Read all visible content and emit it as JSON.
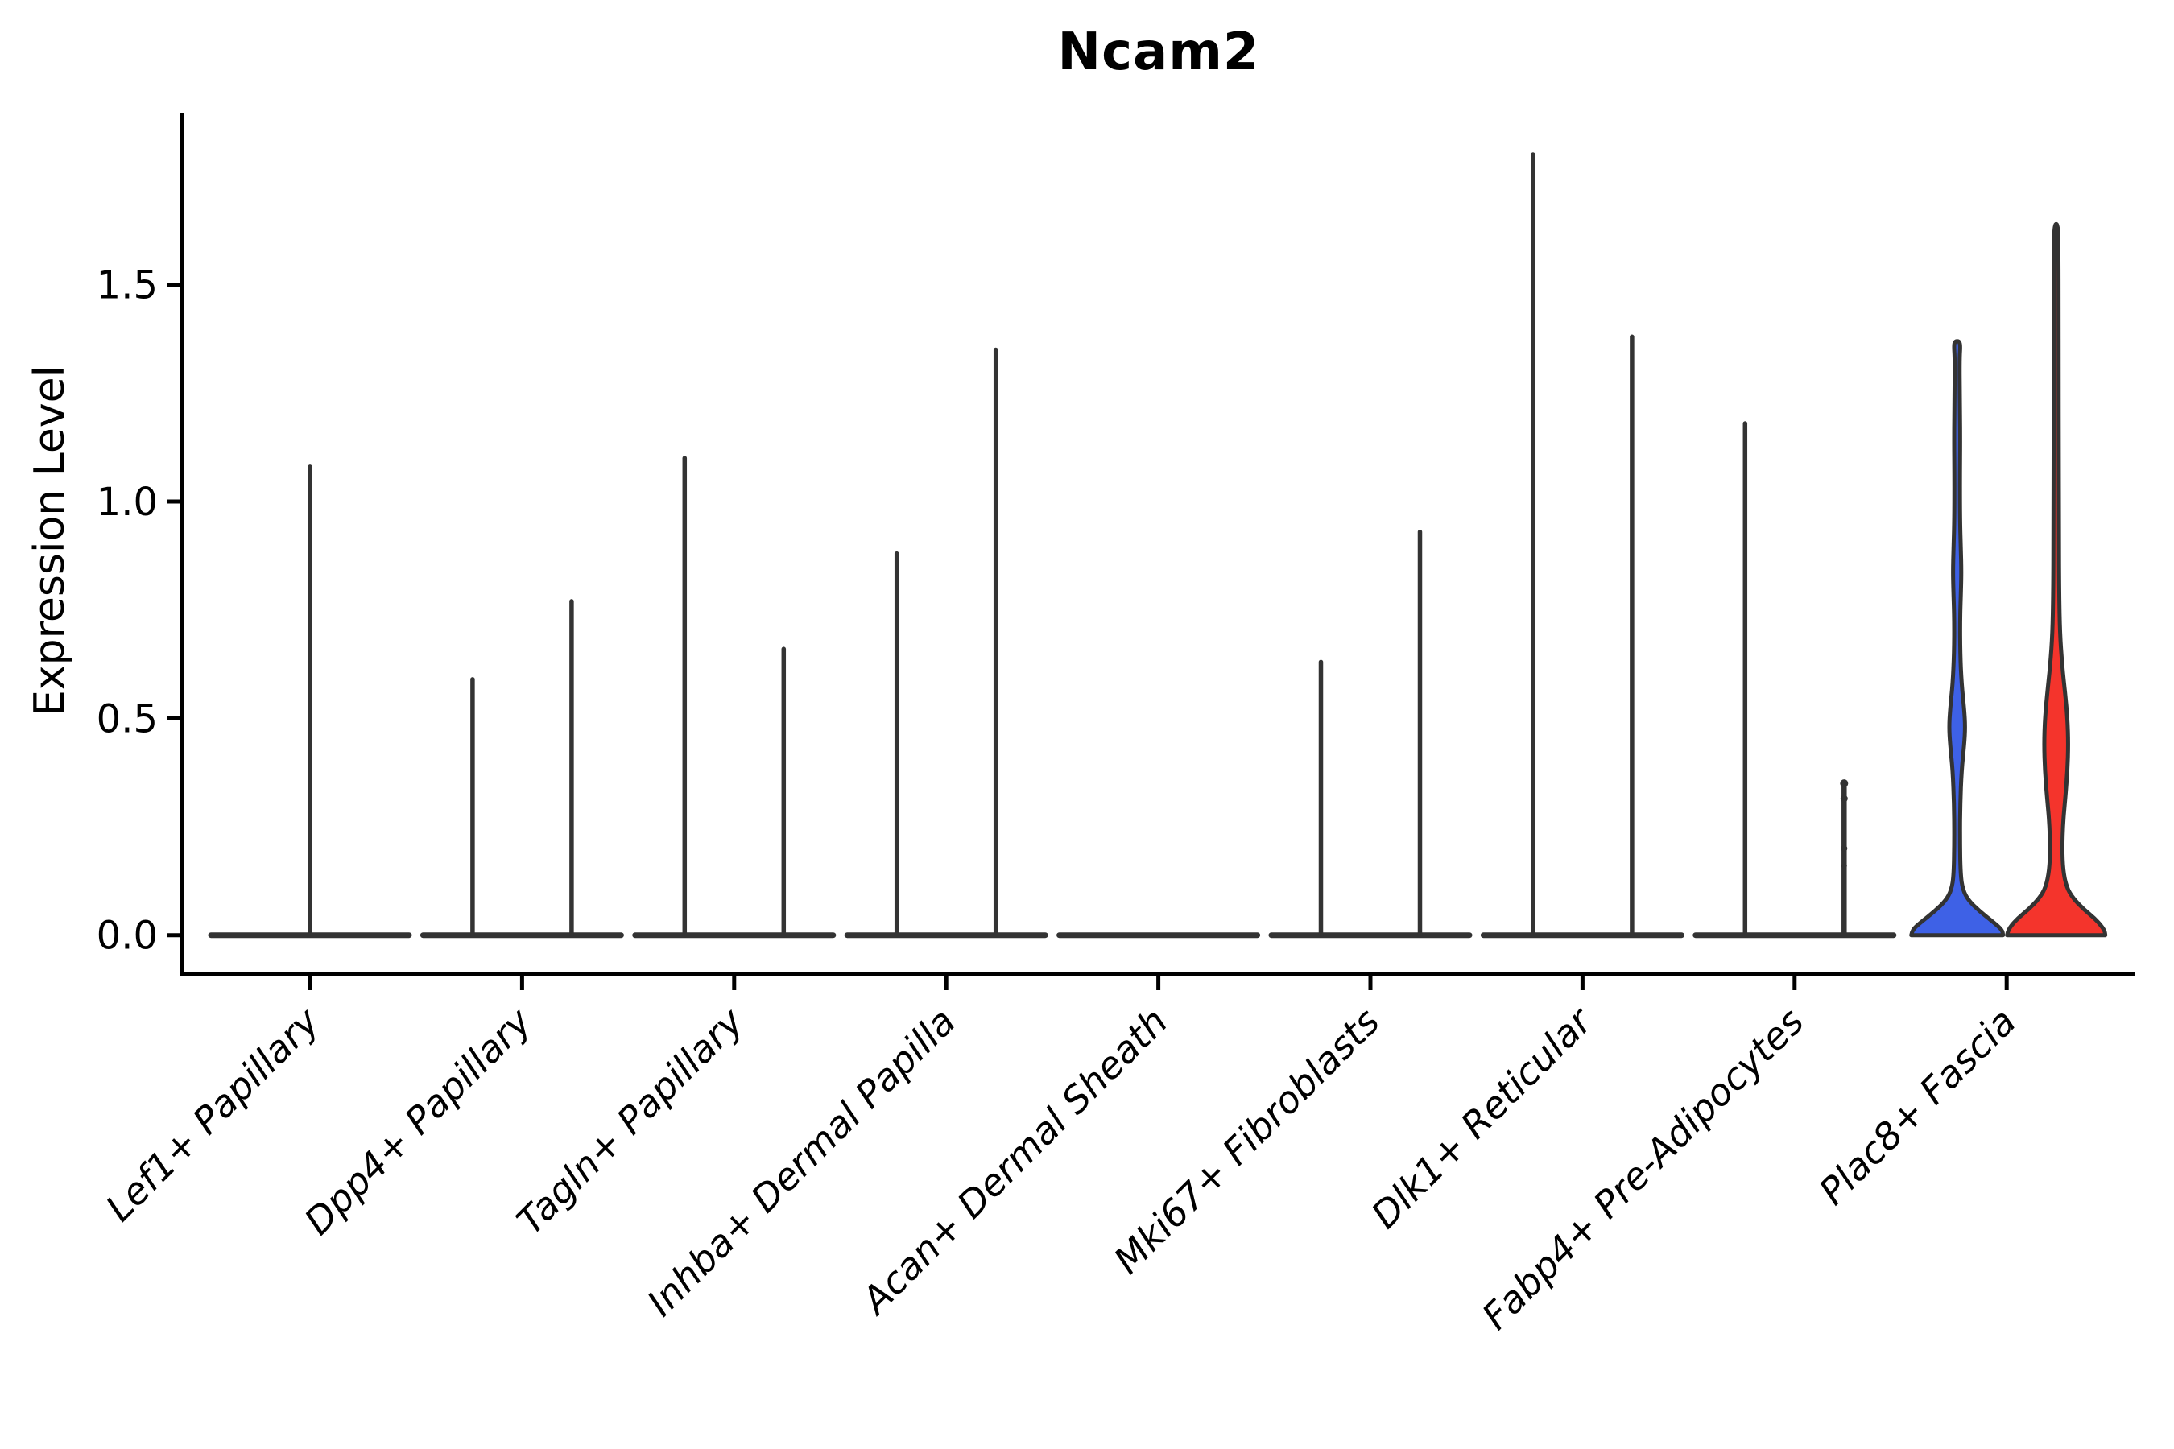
{
  "chart_data": {
    "type": "violin",
    "title": "Ncam2",
    "ylabel": "Expression Level",
    "xlabel": "",
    "ylim": [
      -0.09,
      1.9
    ],
    "grid": false,
    "legend_position": "none",
    "yticks": [
      {
        "label": "0.0",
        "value": 0.0
      },
      {
        "label": "0.5",
        "value": 0.5
      },
      {
        "label": "1.0",
        "value": 1.0
      },
      {
        "label": "1.5",
        "value": 1.5
      }
    ],
    "style": {
      "axis_color": "#000000",
      "violin_outline_color": "#333333",
      "split_color_blue": "#3E61E6",
      "split_color_red": "#F4342C",
      "background": "#ffffff",
      "x_labels_italic": true,
      "x_label_rotation_deg": 45
    },
    "categories": [
      {
        "label": "Lef1+ Papillary",
        "baseline": true,
        "violins": [
          {
            "side": "center",
            "kind": "spike",
            "max_expression": 1.08
          }
        ]
      },
      {
        "label": "Dpp4+ Papillary",
        "baseline": true,
        "violins": [
          {
            "side": "left",
            "kind": "spike",
            "max_expression": 0.59
          },
          {
            "side": "right",
            "kind": "spike",
            "max_expression": 0.77
          }
        ]
      },
      {
        "label": "Tagln+ Papillary",
        "baseline": true,
        "violins": [
          {
            "side": "left",
            "kind": "spike",
            "max_expression": 1.1
          },
          {
            "side": "right",
            "kind": "spike",
            "max_expression": 0.66
          }
        ]
      },
      {
        "label": "Inhba+ Dermal Papilla",
        "baseline": true,
        "violins": [
          {
            "side": "left",
            "kind": "spike",
            "max_expression": 0.88
          },
          {
            "side": "right",
            "kind": "spike",
            "max_expression": 1.35
          }
        ]
      },
      {
        "label": "Acan+ Dermal Sheath",
        "baseline": true,
        "violins": []
      },
      {
        "label": "Mki67+ Fibroblasts",
        "baseline": true,
        "violins": [
          {
            "side": "left",
            "kind": "spike",
            "max_expression": 0.63
          },
          {
            "side": "right",
            "kind": "spike",
            "max_expression": 0.93
          }
        ]
      },
      {
        "label": "Dlk1+ Reticular",
        "baseline": true,
        "violins": [
          {
            "side": "left",
            "kind": "spike",
            "max_expression": 1.8
          },
          {
            "side": "right",
            "kind": "spike",
            "max_expression": 1.38
          }
        ]
      },
      {
        "label": "Fabp4+ Pre-Adipocytes",
        "baseline": true,
        "violins": [
          {
            "side": "left",
            "kind": "spike",
            "max_expression": 1.18
          },
          {
            "side": "right",
            "kind": "spike",
            "max_expression": 0.35,
            "thick": true,
            "knobs": [
              0.35,
              0.315,
              0.2,
              0.16
            ]
          }
        ]
      },
      {
        "label": "Plac8+ Fascia",
        "baseline": false,
        "violins": [
          {
            "side": "left",
            "kind": "filled",
            "fill": "#3E61E6",
            "max_expression": 1.37,
            "profile": [
              [
                0.0,
                57
              ],
              [
                0.012,
                56
              ],
              [
                0.03,
                45
              ],
              [
                0.055,
                28
              ],
              [
                0.08,
                14
              ],
              [
                0.105,
                7
              ],
              [
                0.14,
                4.2
              ],
              [
                0.22,
                3.5
              ],
              [
                0.3,
                3.8
              ],
              [
                0.38,
                5.5
              ],
              [
                0.44,
                8.8
              ],
              [
                0.48,
                10
              ],
              [
                0.52,
                8.8
              ],
              [
                0.58,
                5.5
              ],
              [
                0.65,
                3.8
              ],
              [
                0.73,
                3.6
              ],
              [
                0.8,
                4.8
              ],
              [
                0.84,
                5.2
              ],
              [
                0.89,
                4.6
              ],
              [
                0.95,
                3.6
              ],
              [
                1.05,
                3.4
              ],
              [
                1.15,
                3.8
              ],
              [
                1.25,
                3.2
              ],
              [
                1.33,
                3.0
              ],
              [
                1.36,
                4.0
              ],
              [
                1.37,
                2.5
              ]
            ]
          },
          {
            "side": "right",
            "kind": "filled",
            "fill": "#F4342C",
            "max_expression": 1.64,
            "profile": [
              [
                0.0,
                61
              ],
              [
                0.012,
                60
              ],
              [
                0.035,
                50
              ],
              [
                0.06,
                34
              ],
              [
                0.085,
                21
              ],
              [
                0.11,
                13
              ],
              [
                0.15,
                8.5
              ],
              [
                0.2,
                7.5
              ],
              [
                0.26,
                8.5
              ],
              [
                0.32,
                11.5
              ],
              [
                0.38,
                14
              ],
              [
                0.44,
                15
              ],
              [
                0.5,
                14
              ],
              [
                0.56,
                11
              ],
              [
                0.62,
                7.5
              ],
              [
                0.7,
                4.5
              ],
              [
                0.8,
                3.6
              ],
              [
                0.95,
                3.4
              ],
              [
                1.1,
                3.2
              ],
              [
                1.3,
                3.0
              ],
              [
                1.45,
                3.0
              ],
              [
                1.58,
                2.8
              ],
              [
                1.64,
                2.2
              ]
            ]
          }
        ]
      }
    ]
  }
}
